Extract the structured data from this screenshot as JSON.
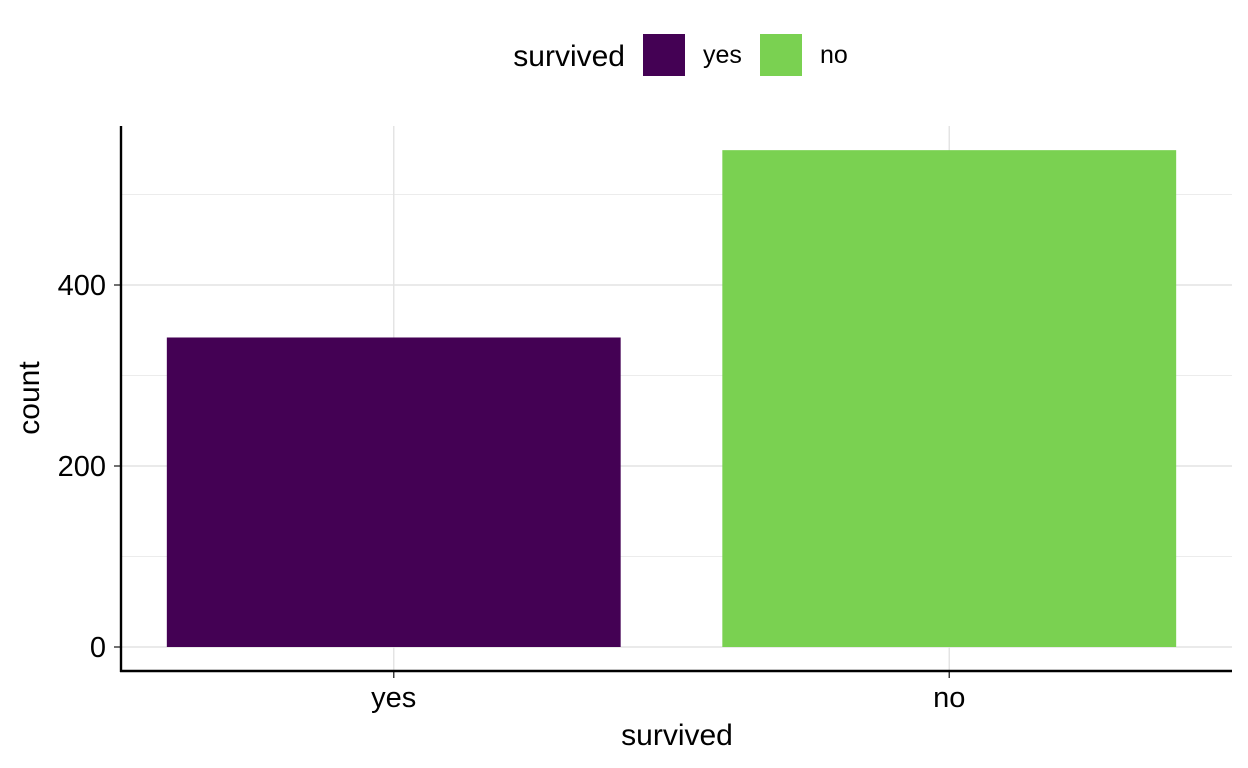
{
  "chart_data": {
    "type": "bar",
    "categories": [
      "yes",
      "no"
    ],
    "values": [
      342,
      549
    ],
    "colors": [
      "#440154",
      "#7ad151"
    ],
    "xlabel": "survived",
    "ylabel": "count",
    "ylim": [
      0,
      576.45
    ],
    "yticks": [
      0,
      200,
      400
    ],
    "ytick_labels": [
      "0",
      "200",
      "400"
    ],
    "grid": true,
    "legend": {
      "title": "survived",
      "position": "top",
      "entries": [
        {
          "label": "yes",
          "color": "#440154"
        },
        {
          "label": "no",
          "color": "#7ad151"
        }
      ]
    }
  }
}
